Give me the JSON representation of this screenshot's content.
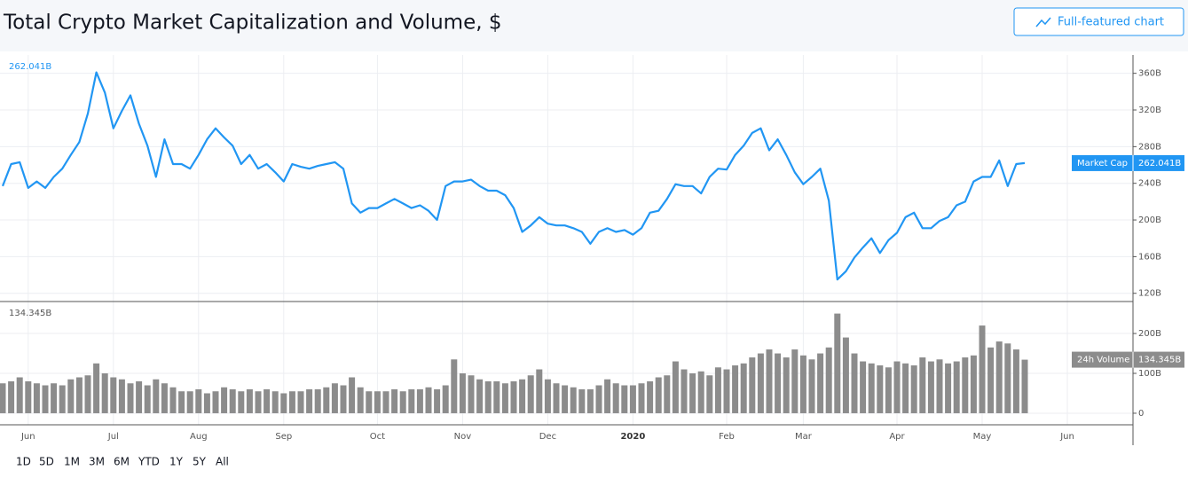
{
  "header": {
    "title": "Total Crypto Market Capitalization and Volume, $",
    "button": "Full-featured chart"
  },
  "chart_data": [
    {
      "type": "line",
      "series": [
        {
          "name": "Market Cap",
          "color": "#2196f3",
          "last_label": "262.041B",
          "values": [
            237,
            261,
            263,
            235,
            242,
            235,
            247,
            256,
            271,
            285,
            316,
            361,
            339,
            300,
            319,
            336,
            305,
            281,
            247,
            288,
            261,
            261,
            256,
            271,
            288,
            300,
            290,
            281,
            261,
            271,
            256,
            261,
            252,
            242,
            261,
            258,
            256,
            259,
            261,
            263,
            256,
            218,
            208,
            213,
            213,
            218,
            223,
            218,
            213,
            216,
            210,
            200,
            237,
            242,
            242,
            244,
            237,
            232,
            232,
            227,
            213,
            187,
            194,
            203,
            196,
            194,
            194,
            191,
            187,
            174,
            187,
            191,
            187,
            189,
            184,
            191,
            208,
            210,
            223,
            239,
            237,
            237,
            229,
            247,
            256,
            255,
            271,
            281,
            295,
            300,
            276,
            288,
            271,
            252,
            239,
            247,
            256,
            221,
            135,
            144,
            159,
            170,
            180,
            164,
            178,
            186,
            203,
            208,
            191,
            191,
            199,
            203,
            216,
            220,
            242,
            247,
            247,
            265,
            237,
            261,
            262.041,
            null,
            null,
            null,
            null,
            null
          ]
        }
      ],
      "ylim": [
        112,
        380
      ],
      "yticks": [
        {
          "value": 120,
          "label": "120B"
        },
        {
          "value": 160,
          "label": "160B"
        },
        {
          "value": 200,
          "label": "200B"
        },
        {
          "value": 240,
          "label": "240B"
        },
        {
          "value": 280,
          "label": "280B"
        },
        {
          "value": 320,
          "label": "320B"
        },
        {
          "value": 360,
          "label": "360B"
        }
      ],
      "grid": true
    },
    {
      "type": "bar",
      "categories": [
        null,
        null,
        null,
        "Jun",
        null,
        null,
        null,
        null,
        null,
        null,
        null,
        null,
        null,
        "Jul",
        null,
        null,
        null,
        null,
        null,
        null,
        null,
        null,
        null,
        "Aug",
        null,
        null,
        null,
        null,
        null,
        null,
        null,
        null,
        null,
        "Sep",
        null,
        null,
        null,
        null,
        null,
        null,
        null,
        null,
        null,
        null,
        "Oct",
        null,
        null,
        null,
        null,
        null,
        null,
        null,
        null,
        null,
        "Nov",
        null,
        null,
        null,
        null,
        null,
        null,
        null,
        null,
        null,
        "Dec",
        null,
        null,
        null,
        null,
        null,
        null,
        null,
        null,
        null,
        "2020",
        null,
        null,
        null,
        null,
        null,
        null,
        null,
        null,
        null,
        null,
        "Feb",
        null,
        null,
        null,
        null,
        null,
        null,
        null,
        null,
        "Mar",
        null,
        null,
        null,
        null,
        null,
        null,
        null,
        null,
        null,
        null,
        "Apr",
        null,
        null,
        null,
        null,
        null,
        null,
        null,
        null,
        null,
        "May",
        null,
        null,
        null,
        null,
        null,
        null,
        null,
        null,
        null,
        "Jun"
      ],
      "series": [
        {
          "name": "24h Volume",
          "color": "#8c8c8c",
          "last_label": "134.345B",
          "values": [
            75,
            80,
            90,
            80,
            75,
            70,
            75,
            70,
            85,
            90,
            95,
            125,
            100,
            90,
            85,
            75,
            80,
            70,
            85,
            75,
            65,
            55,
            55,
            60,
            50,
            55,
            65,
            60,
            55,
            60,
            55,
            60,
            55,
            50,
            55,
            55,
            60,
            60,
            65,
            75,
            70,
            90,
            65,
            55,
            55,
            55,
            60,
            55,
            60,
            60,
            65,
            60,
            70,
            135,
            100,
            95,
            85,
            80,
            80,
            75,
            80,
            85,
            95,
            110,
            85,
            75,
            70,
            65,
            60,
            60,
            70,
            85,
            75,
            70,
            70,
            75,
            80,
            90,
            95,
            130,
            110,
            100,
            105,
            95,
            115,
            110,
            120,
            125,
            140,
            150,
            160,
            150,
            140,
            160,
            145,
            135,
            150,
            165,
            250,
            190,
            150,
            130,
            125,
            120,
            115,
            130,
            125,
            120,
            140,
            130,
            135,
            125,
            130,
            140,
            145,
            220,
            165,
            180,
            175,
            160,
            134.345,
            null,
            null,
            null,
            null,
            null
          ]
        }
      ],
      "ylim": [
        -29,
        278
      ],
      "yticks": [
        0,
        {
          "value": 100,
          "label": "100B"
        },
        {
          "value": 200,
          "label": "200B"
        }
      ],
      "grid": true
    }
  ],
  "ranges": [
    "1D",
    "5D",
    "1M",
    "3M",
    "6M",
    "YTD",
    "1Y",
    "5Y",
    "All"
  ]
}
